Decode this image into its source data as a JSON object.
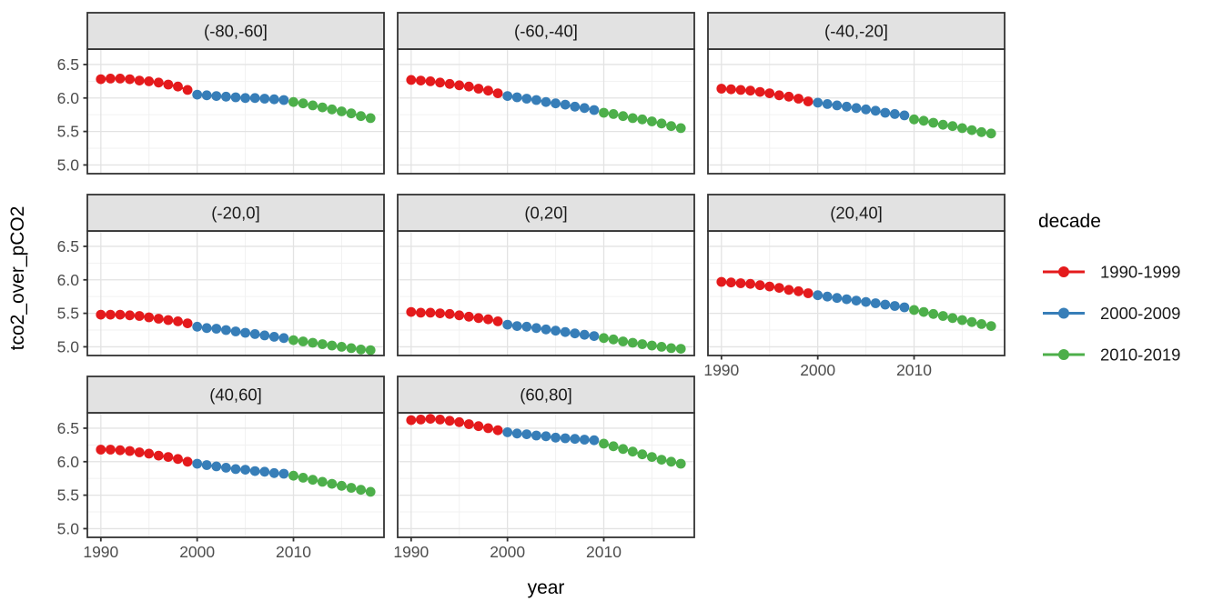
{
  "figure": {
    "x_axis_title": "year",
    "y_axis_title": "tco2_over_pCO2"
  },
  "chart_data": {
    "type": "line",
    "title": "",
    "xlabel": "year",
    "ylabel": "tco2_over_pCO2",
    "grid": true,
    "legend_position": "right",
    "x": [
      1990,
      1991,
      1992,
      1993,
      1994,
      1995,
      1996,
      1997,
      1998,
      1999,
      2000,
      2001,
      2002,
      2003,
      2004,
      2005,
      2006,
      2007,
      2008,
      2009,
      2010,
      2011,
      2012,
      2013,
      2014,
      2015,
      2016,
      2017,
      2018
    ],
    "xlim": [
      1988.6,
      2019.4
    ],
    "ylim": [
      4.87,
      6.73
    ],
    "x_ticks": [
      1990,
      2000,
      2010
    ],
    "y_ticks": [
      5.0,
      5.5,
      6.0,
      6.5
    ],
    "x_minor": [
      1995,
      2005,
      2015
    ],
    "y_minor": [
      5.25,
      5.75,
      6.25
    ],
    "legend": {
      "title": "decade",
      "entries": [
        {
          "label": "1990-1999",
          "color": "#E41A1C",
          "years": [
            1990,
            1999
          ]
        },
        {
          "label": "2000-2009",
          "color": "#377EB8",
          "years": [
            2000,
            2009
          ]
        },
        {
          "label": "2010-2019",
          "color": "#4DAF4A",
          "years": [
            2010,
            2018
          ]
        }
      ]
    },
    "theme": {
      "strip_fill": "#E2E2E2",
      "panel_border": "#333333",
      "grid_major": "#E3E3E3",
      "grid_minor": "#F1F1F1",
      "tick_label_color": "#4D4D4D",
      "axis_title_color": "#000000",
      "strip_text_color": "#1A1A1A"
    },
    "facets": [
      {
        "label": "(-80,-60]",
        "row": 0,
        "col": 0,
        "values": [
          6.28,
          6.29,
          6.29,
          6.28,
          6.26,
          6.25,
          6.23,
          6.2,
          6.17,
          6.12,
          6.05,
          6.04,
          6.03,
          6.02,
          6.01,
          6.0,
          6.0,
          5.99,
          5.98,
          5.97,
          5.94,
          5.92,
          5.89,
          5.86,
          5.83,
          5.8,
          5.77,
          5.73,
          5.7
        ]
      },
      {
        "label": "(-60,-40]",
        "row": 0,
        "col": 1,
        "values": [
          6.27,
          6.26,
          6.25,
          6.23,
          6.21,
          6.19,
          6.17,
          6.14,
          6.11,
          6.07,
          6.03,
          6.01,
          5.99,
          5.97,
          5.94,
          5.92,
          5.9,
          5.87,
          5.85,
          5.82,
          5.78,
          5.76,
          5.73,
          5.7,
          5.68,
          5.65,
          5.62,
          5.58,
          5.55
        ]
      },
      {
        "label": "(-40,-20]",
        "row": 0,
        "col": 2,
        "values": [
          6.14,
          6.13,
          6.12,
          6.11,
          6.09,
          6.07,
          6.04,
          6.02,
          5.99,
          5.95,
          5.93,
          5.91,
          5.89,
          5.87,
          5.85,
          5.83,
          5.81,
          5.78,
          5.76,
          5.74,
          5.68,
          5.66,
          5.63,
          5.6,
          5.58,
          5.55,
          5.52,
          5.49,
          5.47
        ]
      },
      {
        "label": "(-20,0]",
        "row": 1,
        "col": 0,
        "values": [
          5.48,
          5.48,
          5.48,
          5.47,
          5.46,
          5.44,
          5.42,
          5.4,
          5.38,
          5.35,
          5.3,
          5.28,
          5.27,
          5.25,
          5.23,
          5.21,
          5.19,
          5.17,
          5.15,
          5.13,
          5.1,
          5.08,
          5.06,
          5.04,
          5.02,
          5.0,
          4.98,
          4.96,
          4.95
        ]
      },
      {
        "label": "(0,20]",
        "row": 1,
        "col": 1,
        "values": [
          5.52,
          5.51,
          5.51,
          5.5,
          5.49,
          5.47,
          5.45,
          5.43,
          5.41,
          5.38,
          5.33,
          5.31,
          5.3,
          5.28,
          5.26,
          5.24,
          5.22,
          5.2,
          5.18,
          5.16,
          5.13,
          5.11,
          5.08,
          5.06,
          5.04,
          5.02,
          5.0,
          4.98,
          4.97
        ]
      },
      {
        "label": "(20,40]",
        "row": 1,
        "col": 2,
        "values": [
          5.97,
          5.96,
          5.95,
          5.94,
          5.92,
          5.9,
          5.88,
          5.85,
          5.83,
          5.8,
          5.77,
          5.75,
          5.73,
          5.71,
          5.69,
          5.67,
          5.65,
          5.63,
          5.61,
          5.59,
          5.55,
          5.52,
          5.49,
          5.46,
          5.43,
          5.4,
          5.37,
          5.34,
          5.31
        ]
      },
      {
        "label": "(40,60]",
        "row": 2,
        "col": 0,
        "values": [
          6.18,
          6.18,
          6.17,
          6.16,
          6.14,
          6.12,
          6.09,
          6.07,
          6.04,
          6.0,
          5.97,
          5.95,
          5.93,
          5.91,
          5.89,
          5.88,
          5.86,
          5.85,
          5.83,
          5.82,
          5.79,
          5.76,
          5.73,
          5.7,
          5.67,
          5.64,
          5.61,
          5.58,
          5.55
        ]
      },
      {
        "label": "(60,80]",
        "row": 2,
        "col": 1,
        "values": [
          6.62,
          6.63,
          6.64,
          6.63,
          6.61,
          6.59,
          6.56,
          6.53,
          6.5,
          6.47,
          6.44,
          6.42,
          6.41,
          6.39,
          6.38,
          6.36,
          6.35,
          6.34,
          6.33,
          6.32,
          6.27,
          6.23,
          6.19,
          6.15,
          6.11,
          6.07,
          6.03,
          6.0,
          5.97
        ]
      }
    ]
  }
}
